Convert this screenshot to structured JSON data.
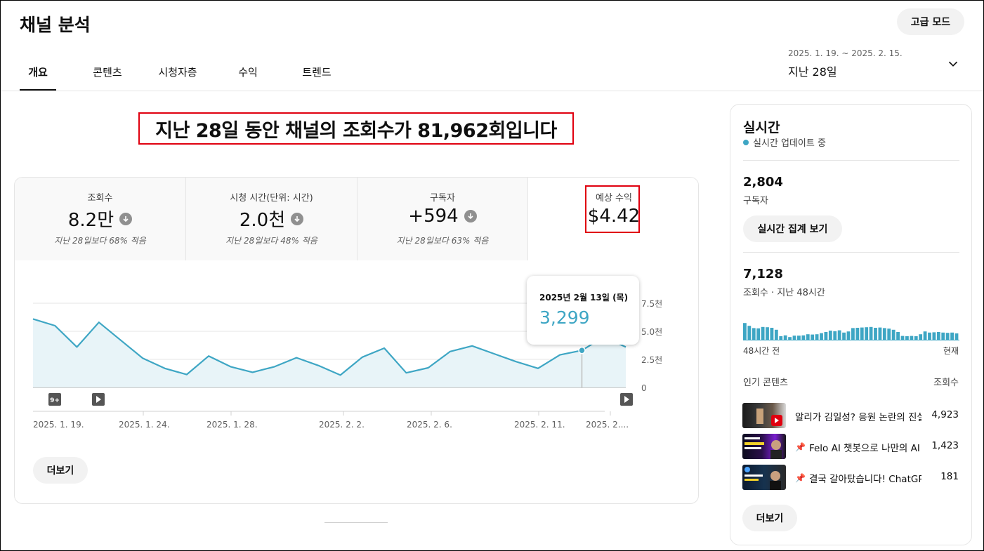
{
  "header": {
    "title": "채널 분석",
    "advanced_mode": "고급 모드",
    "tabs": [
      "개요",
      "콘텐츠",
      "시청자층",
      "수익",
      "트렌드"
    ],
    "date_range": "2025. 1. 19. ~ 2025. 2. 15.",
    "date_label": "지난 28일"
  },
  "headline": "지난 28일 동안 채널의 조회수가 81,962회입니다",
  "metrics": [
    {
      "label": "조회수",
      "value": "8.2만",
      "sub": "지난 28일보다 68% 적음"
    },
    {
      "label": "시청 시간(단위: 시간)",
      "value": "2.0천",
      "sub": "지난 28일보다 48% 적음"
    },
    {
      "label": "구독자",
      "value": "+594",
      "sub": "지난 28일보다 63% 적음"
    },
    {
      "label": "예상 수익",
      "value": "$4.42"
    }
  ],
  "tooltip": {
    "date": "2025년 2월 13일 (목)",
    "value": "3,299"
  },
  "chart_data": {
    "type": "area",
    "x": [
      "2025-01-19",
      "2025-01-20",
      "2025-01-21",
      "2025-01-22",
      "2025-01-23",
      "2025-01-24",
      "2025-01-25",
      "2025-01-26",
      "2025-01-27",
      "2025-01-28",
      "2025-01-29",
      "2025-01-30",
      "2025-01-31",
      "2025-02-01",
      "2025-02-02",
      "2025-02-03",
      "2025-02-04",
      "2025-02-05",
      "2025-02-06",
      "2025-02-07",
      "2025-02-08",
      "2025-02-09",
      "2025-02-10",
      "2025-02-11",
      "2025-02-12",
      "2025-02-13",
      "2025-02-14",
      "2025-02-15"
    ],
    "values": [
      6100,
      5500,
      3600,
      5800,
      4200,
      2600,
      1700,
      1150,
      2800,
      1850,
      1350,
      1850,
      2650,
      1950,
      1100,
      2700,
      3500,
      1300,
      1750,
      3200,
      3700,
      3000,
      2300,
      1700,
      2900,
      3299,
      4500,
      3600
    ],
    "ylim": [
      0,
      7500
    ],
    "y_ticks": [
      "7.5천",
      "5.0천",
      "2.5천",
      "0"
    ],
    "x_tick_labels": [
      "2025. 1. 19.",
      "2025. 1. 24.",
      "2025. 1. 28.",
      "2025. 2. 2.",
      "2025. 2. 6.",
      "2025. 2. 11.",
      "2025. 2...."
    ],
    "highlight_date": "2025-02-13",
    "line_color": "#3ea6c4",
    "fill_color": "#e8f4f8",
    "markers": [
      "9+"
    ]
  },
  "more_button": "더보기",
  "realtime": {
    "title": "실시간",
    "status": "실시간 업데이트 중",
    "subscribers": "2,804",
    "subscribers_label": "구독자",
    "realtime_button": "실시간 집계 보기",
    "views": "7,128",
    "views_label": "조회수 · 지난 48시간",
    "bars": [
      0.62,
      0.52,
      0.44,
      0.43,
      0.48,
      0.47,
      0.45,
      0.38,
      0.15,
      0.18,
      0.12,
      0.17,
      0.17,
      0.18,
      0.22,
      0.21,
      0.22,
      0.26,
      0.3,
      0.35,
      0.33,
      0.36,
      0.28,
      0.32,
      0.44,
      0.45,
      0.46,
      0.47,
      0.48,
      0.45,
      0.46,
      0.44,
      0.42,
      0.38,
      0.3,
      0.16,
      0.15,
      0.16,
      0.15,
      0.22,
      0.32,
      0.28,
      0.29,
      0.3,
      0.28,
      0.27,
      0.28,
      0.25
    ],
    "axis_start": "48시간 전",
    "axis_end": "현재",
    "top_content_label": "인기 콘텐츠",
    "top_content_metric": "조회수",
    "content": [
      {
        "title": "알리가 김일성? 응원 논란의 진실",
        "views": "4,923",
        "pinned": false
      },
      {
        "title": "Felo AI 챗봇으로 나만의 AI 어시스턴트",
        "views": "1,423",
        "pinned": true
      },
      {
        "title": "결국 갈아탔습니다! ChatGPT",
        "views": "181",
        "pinned": true
      }
    ],
    "more_button": "더보기"
  }
}
